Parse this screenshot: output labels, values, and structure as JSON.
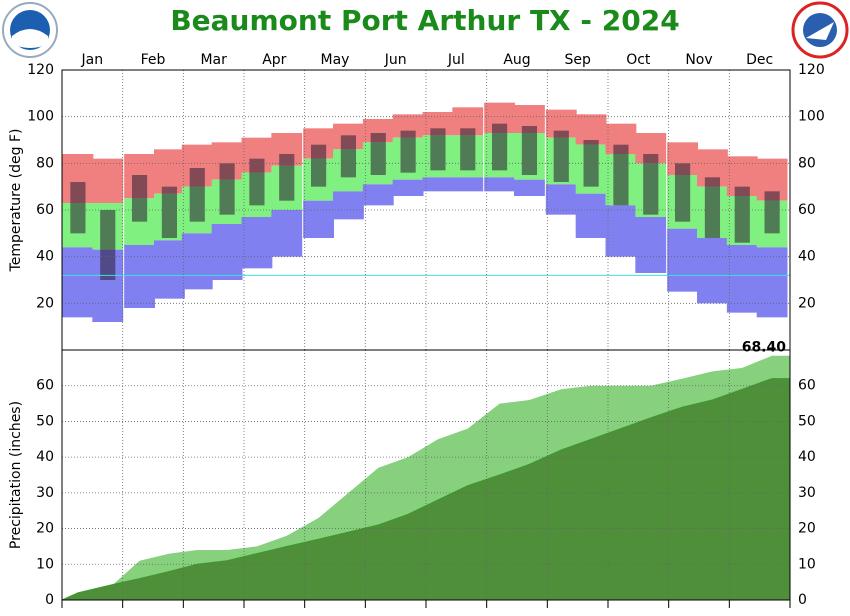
{
  "chart_data": [
    {
      "type": "range",
      "title": "Beaumont Port Arthur TX - 2024",
      "title_color": "#1a8a1a",
      "ylabel": "Temperature (deg F)",
      "categories": [
        "Jan",
        "Feb",
        "Mar",
        "Apr",
        "May",
        "Jun",
        "Jul",
        "Aug",
        "Sep",
        "Oct",
        "Nov",
        "Dec"
      ],
      "x": [
        8,
        23,
        39,
        54,
        68,
        83,
        98,
        113,
        129,
        144,
        159,
        174,
        189,
        204,
        220,
        235,
        251,
        266,
        281,
        296,
        312,
        327,
        342,
        357
      ],
      "xlim": [
        0,
        366
      ],
      "ylim": [
        0,
        120
      ],
      "yticks": [
        20,
        40,
        60,
        80,
        100,
        120
      ],
      "grid": true,
      "record_high": [
        84,
        82,
        84,
        86,
        88,
        89,
        91,
        93,
        95,
        97,
        99,
        101,
        102,
        104,
        106,
        105,
        103,
        101,
        97,
        93,
        89,
        86,
        83,
        82
      ],
      "normal_high": [
        63,
        63,
        65,
        67,
        70,
        73,
        76,
        79,
        82,
        86,
        89,
        91,
        92,
        92,
        93,
        93,
        91,
        88,
        84,
        80,
        75,
        70,
        66,
        64
      ],
      "normal_low": [
        44,
        43,
        45,
        47,
        50,
        54,
        57,
        60,
        64,
        68,
        71,
        73,
        74,
        74,
        74,
        73,
        71,
        67,
        62,
        57,
        52,
        48,
        45,
        44
      ],
      "record_low": [
        14,
        12,
        18,
        22,
        26,
        30,
        35,
        40,
        48,
        56,
        62,
        66,
        68,
        68,
        68,
        66,
        58,
        48,
        40,
        33,
        25,
        20,
        16,
        14
      ],
      "observed_high": [
        72,
        60,
        75,
        70,
        78,
        80,
        82,
        84,
        88,
        92,
        93,
        94,
        95,
        95,
        97,
        96,
        94,
        90,
        88,
        84,
        80,
        74,
        70,
        68
      ],
      "observed_low": [
        50,
        30,
        55,
        48,
        55,
        58,
        62,
        64,
        70,
        74,
        75,
        76,
        77,
        77,
        77,
        75,
        72,
        70,
        62,
        58,
        55,
        48,
        46,
        50
      ],
      "colors": {
        "record_high": "#f08080",
        "normal": "#80f080",
        "record_low": "#8080f0",
        "observed": "rgba(40,30,50,0.55)"
      },
      "reference_line": 32
    },
    {
      "type": "area",
      "ylabel": "Precipitation (inches)",
      "x": [
        8,
        23,
        39,
        54,
        68,
        83,
        98,
        113,
        129,
        144,
        159,
        174,
        189,
        204,
        220,
        235,
        251,
        266,
        281,
        296,
        312,
        327,
        342,
        357
      ],
      "xlim": [
        0,
        366
      ],
      "ylim": [
        0,
        70
      ],
      "yticks": [
        0,
        10,
        20,
        30,
        40,
        50,
        60
      ],
      "grid": true,
      "series": [
        {
          "color": "#86d07e",
          "values": [
            1,
            3,
            11,
            13,
            14,
            14,
            15,
            18,
            23,
            30,
            37,
            40,
            45,
            48,
            55,
            56,
            59,
            60,
            60,
            60,
            62,
            64,
            65,
            68.4
          ]
        },
        {
          "color": "#4f8f3a",
          "values": [
            2,
            4,
            6,
            8,
            10,
            11,
            13,
            15,
            17,
            19,
            21,
            24,
            28,
            32,
            35,
            38,
            42,
            45,
            48,
            51,
            54,
            56,
            59,
            62
          ]
        }
      ],
      "total": {
        "value": 68.4,
        "label": "68.40"
      }
    }
  ]
}
